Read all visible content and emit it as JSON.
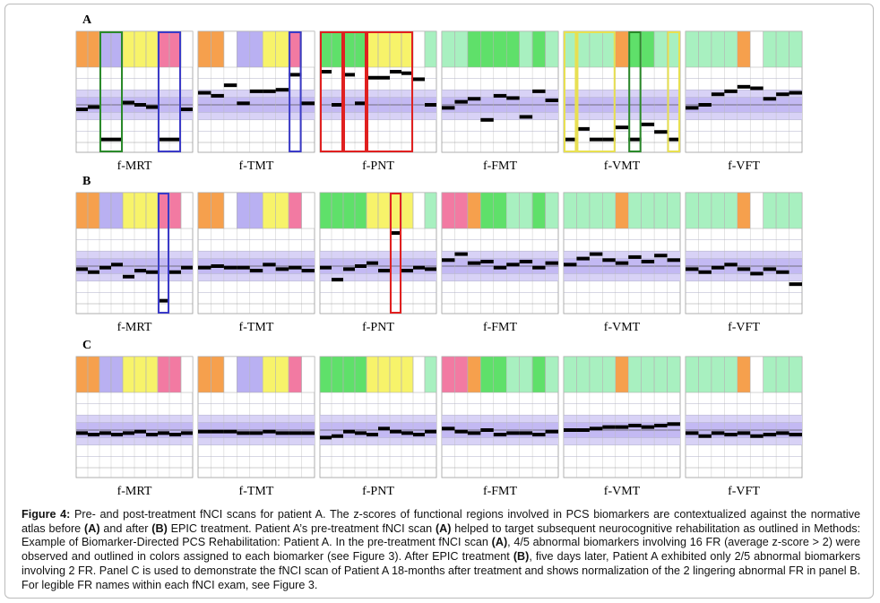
{
  "figure": {
    "zlim": [
      -5,
      5
    ],
    "panels": [
      {
        "label": "A",
        "charts": [
          {
            "name": "f-MRT",
            "colors": [
              "#f6a04d",
              "#f6a04d",
              "#b9b0f2",
              "#b9b0f2",
              "#f7f36a",
              "#f7f36a",
              "#f7f36a",
              "#f27aa2",
              "#f27aa2",
              "#ffffff"
            ],
            "values": [
              -0.6,
              -0.3,
              -4.6,
              -4.6,
              0.3,
              0,
              -0.3,
              -4.6,
              -4.6,
              -0.6
            ],
            "outlines": [
              {
                "from": 2,
                "to": 3,
                "color": "#2a8a2a"
              },
              {
                "from": 7,
                "to": 8,
                "color": "#3a3ac8"
              }
            ]
          },
          {
            "name": "f-TMT",
            "colors": [
              "#f6a04d",
              "#f6a04d",
              "#ffffff",
              "#b9b0f2",
              "#b9b0f2",
              "#f7f36a",
              "#f7f36a",
              "#f27aa2",
              "#ffffff"
            ],
            "values": [
              1.6,
              1.2,
              2.6,
              0.2,
              1.8,
              1.8,
              2,
              4,
              0.2
            ],
            "outlines": [
              {
                "from": 7,
                "to": 7,
                "color": "#3a3ac8"
              }
            ]
          },
          {
            "name": "f-PNT",
            "colors": [
              "#5fe06a",
              "#5fe06a",
              "#5fe06a",
              "#5fe06a",
              "#f7f36a",
              "#f7f36a",
              "#f7f36a",
              "#f7f36a",
              "#ffffff",
              "#a8f0c0"
            ],
            "values": [
              4.4,
              0,
              4,
              0.2,
              3.6,
              3.6,
              4.4,
              4.2,
              3.4,
              0
            ],
            "outlines": [
              {
                "from": 0,
                "to": 1,
                "color": "#e02020"
              },
              {
                "from": 2,
                "to": 3,
                "color": "#e02020"
              },
              {
                "from": 4,
                "to": 7,
                "color": "#e02020"
              }
            ]
          },
          {
            "name": "f-FMT",
            "colors": [
              "#a8f0c0",
              "#a8f0c0",
              "#5fe06a",
              "#5fe06a",
              "#5fe06a",
              "#5fe06a",
              "#a8f0c0",
              "#5fe06a",
              "#a8f0c0"
            ],
            "values": [
              -0.4,
              0.4,
              0.8,
              -2,
              1.2,
              0.9,
              -1.6,
              1.8,
              0.6
            ]
          },
          {
            "name": "f-VMT",
            "colors": [
              "#a8f0c0",
              "#a8f0c0",
              "#a8f0c0",
              "#a8f0c0",
              "#f6a04d",
              "#5fe06a",
              "#5fe06a",
              "#a8f0c0",
              "#a8f0c0"
            ],
            "values": [
              -4.6,
              -3.2,
              -4.6,
              -4.6,
              -3,
              -4.6,
              -2.6,
              -3.6,
              -4.6
            ],
            "outlines": [
              {
                "from": 0,
                "to": 0,
                "color": "#e8e050"
              },
              {
                "from": 1,
                "to": 3,
                "color": "#e8e050"
              },
              {
                "from": 5,
                "to": 5,
                "color": "#2a8a2a"
              },
              {
                "from": 8,
                "to": 8,
                "color": "#e8e050"
              }
            ]
          },
          {
            "name": "f-VFT",
            "colors": [
              "#a8f0c0",
              "#a8f0c0",
              "#a8f0c0",
              "#a8f0c0",
              "#f6a04d",
              "#ffffff",
              "#a8f0c0",
              "#a8f0c0",
              "#a8f0c0"
            ],
            "values": [
              -0.4,
              0,
              1.4,
              1.8,
              2.4,
              2.2,
              0.8,
              1.4,
              1.6
            ]
          }
        ]
      },
      {
        "label": "B",
        "charts": [
          {
            "name": "f-MRT",
            "colors": [
              "#f6a04d",
              "#f6a04d",
              "#b9b0f2",
              "#b9b0f2",
              "#f7f36a",
              "#f7f36a",
              "#f7f36a",
              "#f27aa2",
              "#f27aa2",
              "#ffffff"
            ],
            "values": [
              -0.4,
              -0.8,
              -0.2,
              0.2,
              -1.4,
              -0.6,
              -0.8,
              -4.6,
              -0.8,
              -0.2
            ],
            "outlines": [
              {
                "from": 7,
                "to": 7,
                "color": "#3a3ac8"
              }
            ]
          },
          {
            "name": "f-TMT",
            "colors": [
              "#f6a04d",
              "#f6a04d",
              "#ffffff",
              "#b9b0f2",
              "#b9b0f2",
              "#f7f36a",
              "#f7f36a",
              "#f27aa2",
              "#ffffff"
            ],
            "values": [
              -0.2,
              0,
              -0.2,
              -0.2,
              -0.6,
              0.2,
              -0.4,
              -0.2,
              -0.6
            ]
          },
          {
            "name": "f-PNT",
            "colors": [
              "#5fe06a",
              "#5fe06a",
              "#5fe06a",
              "#5fe06a",
              "#f7f36a",
              "#f7f36a",
              "#f7f36a",
              "#f7f36a",
              "#ffffff",
              "#a8f0c0"
            ],
            "values": [
              -0.2,
              -1.8,
              -0.4,
              0,
              0.4,
              -0.6,
              4.4,
              -0.6,
              -0.2,
              -0.4
            ],
            "outlines": [
              {
                "from": 6,
                "to": 6,
                "color": "#e02020"
              }
            ]
          },
          {
            "name": "f-FMT",
            "colors": [
              "#f27aa2",
              "#f27aa2",
              "#f6a04d",
              "#5fe06a",
              "#5fe06a",
              "#a8f0c0",
              "#a8f0c0",
              "#5fe06a",
              "#a8f0c0"
            ],
            "values": [
              0.8,
              1.6,
              0.4,
              0.6,
              -0.2,
              0.2,
              0.6,
              -0.2,
              0.4
            ]
          },
          {
            "name": "f-VMT",
            "colors": [
              "#a8f0c0",
              "#a8f0c0",
              "#a8f0c0",
              "#a8f0c0",
              "#f6a04d",
              "#a8f0c0",
              "#a8f0c0",
              "#a8f0c0",
              "#a8f0c0"
            ],
            "values": [
              0.2,
              1,
              1.6,
              0.8,
              0.4,
              1.2,
              0.6,
              1.4,
              0.8
            ]
          },
          {
            "name": "f-VFT",
            "colors": [
              "#a8f0c0",
              "#a8f0c0",
              "#a8f0c0",
              "#a8f0c0",
              "#f6a04d",
              "#ffffff",
              "#a8f0c0",
              "#a8f0c0",
              "#a8f0c0"
            ],
            "values": [
              -0.4,
              -0.8,
              -0.2,
              0.2,
              -0.4,
              -1,
              -0.4,
              -0.8,
              -2.4
            ]
          }
        ]
      },
      {
        "label": "C",
        "charts": [
          {
            "name": "f-MRT",
            "colors": [
              "#f6a04d",
              "#f6a04d",
              "#b9b0f2",
              "#b9b0f2",
              "#f7f36a",
              "#f7f36a",
              "#f7f36a",
              "#f27aa2",
              "#f27aa2",
              "#ffffff"
            ],
            "values": [
              -0.4,
              -0.6,
              -0.4,
              -0.6,
              -0.4,
              -0.2,
              -0.6,
              -0.4,
              -0.6,
              -0.4
            ]
          },
          {
            "name": "f-TMT",
            "colors": [
              "#f6a04d",
              "#f6a04d",
              "#ffffff",
              "#b9b0f2",
              "#b9b0f2",
              "#f7f36a",
              "#f7f36a",
              "#f27aa2",
              "#ffffff"
            ],
            "values": [
              -0.2,
              -0.2,
              -0.2,
              -0.4,
              -0.4,
              -0.2,
              -0.4,
              -0.4,
              -0.4
            ]
          },
          {
            "name": "f-PNT",
            "colors": [
              "#5fe06a",
              "#5fe06a",
              "#5fe06a",
              "#5fe06a",
              "#f7f36a",
              "#f7f36a",
              "#f7f36a",
              "#f7f36a",
              "#ffffff",
              "#a8f0c0"
            ],
            "values": [
              -1,
              -0.8,
              -0.2,
              -0.4,
              -0.6,
              0.2,
              -0.2,
              -0.4,
              -0.6,
              -0.2
            ]
          },
          {
            "name": "f-FMT",
            "colors": [
              "#f27aa2",
              "#f27aa2",
              "#f6a04d",
              "#5fe06a",
              "#5fe06a",
              "#a8f0c0",
              "#a8f0c0",
              "#5fe06a",
              "#a8f0c0"
            ],
            "values": [
              0.2,
              -0.2,
              -0.4,
              0,
              -0.6,
              -0.4,
              -0.4,
              -0.6,
              -0.2
            ]
          },
          {
            "name": "f-VMT",
            "colors": [
              "#a8f0c0",
              "#a8f0c0",
              "#a8f0c0",
              "#a8f0c0",
              "#f6a04d",
              "#a8f0c0",
              "#a8f0c0",
              "#a8f0c0",
              "#a8f0c0"
            ],
            "values": [
              0,
              0,
              0.2,
              0.4,
              0.4,
              0.6,
              0.4,
              0.6,
              0.8
            ]
          },
          {
            "name": "f-VFT",
            "colors": [
              "#a8f0c0",
              "#a8f0c0",
              "#a8f0c0",
              "#a8f0c0",
              "#f6a04d",
              "#ffffff",
              "#a8f0c0",
              "#a8f0c0",
              "#a8f0c0"
            ],
            "values": [
              -0.4,
              -0.8,
              -0.4,
              -0.6,
              -0.4,
              -0.8,
              -0.6,
              -0.4,
              -0.6
            ]
          }
        ]
      }
    ]
  },
  "caption": [
    {
      "text": "Figure 4:",
      "bold": true
    },
    {
      "text": " Pre- and post-treatment fNCI scans for patient A. The z-scores of functional regions involved in PCS biomarkers are contextualized against the normative atlas before "
    },
    {
      "text": "(A)",
      "bold": true
    },
    {
      "text": " and after "
    },
    {
      "text": "(B)",
      "bold": true
    },
    {
      "text": " EPIC treatment. Patient A’s pre-treatment fNCI scan "
    },
    {
      "text": "(A)",
      "bold": true
    },
    {
      "text": " helped to target subsequent neurocognitive rehabilitation as outlined in Methods: Example of Biomarker-Directed PCS Rehabilitation: Patient A. In the pre-treatment fNCI scan "
    },
    {
      "text": "(A)",
      "bold": true
    },
    {
      "text": ", 4/5 abnormal biomarkers involving 16 FR (average z-score > 2) were observed and outlined in colors assigned to each biomarker (see Figure 3). After EPIC treatment "
    },
    {
      "text": "(B)",
      "bold": true
    },
    {
      "text": ", five days later, Patient A exhibited only 2/5 abnormal biomarkers involving 2 FR. Panel C is used to demonstrate the fNCI scan of Patient A 18-months after treatment and shows normalization of the 2 lingering abnormal FR in panel B. For legible FR names within each fNCI exam, see Figure 3."
    }
  ]
}
